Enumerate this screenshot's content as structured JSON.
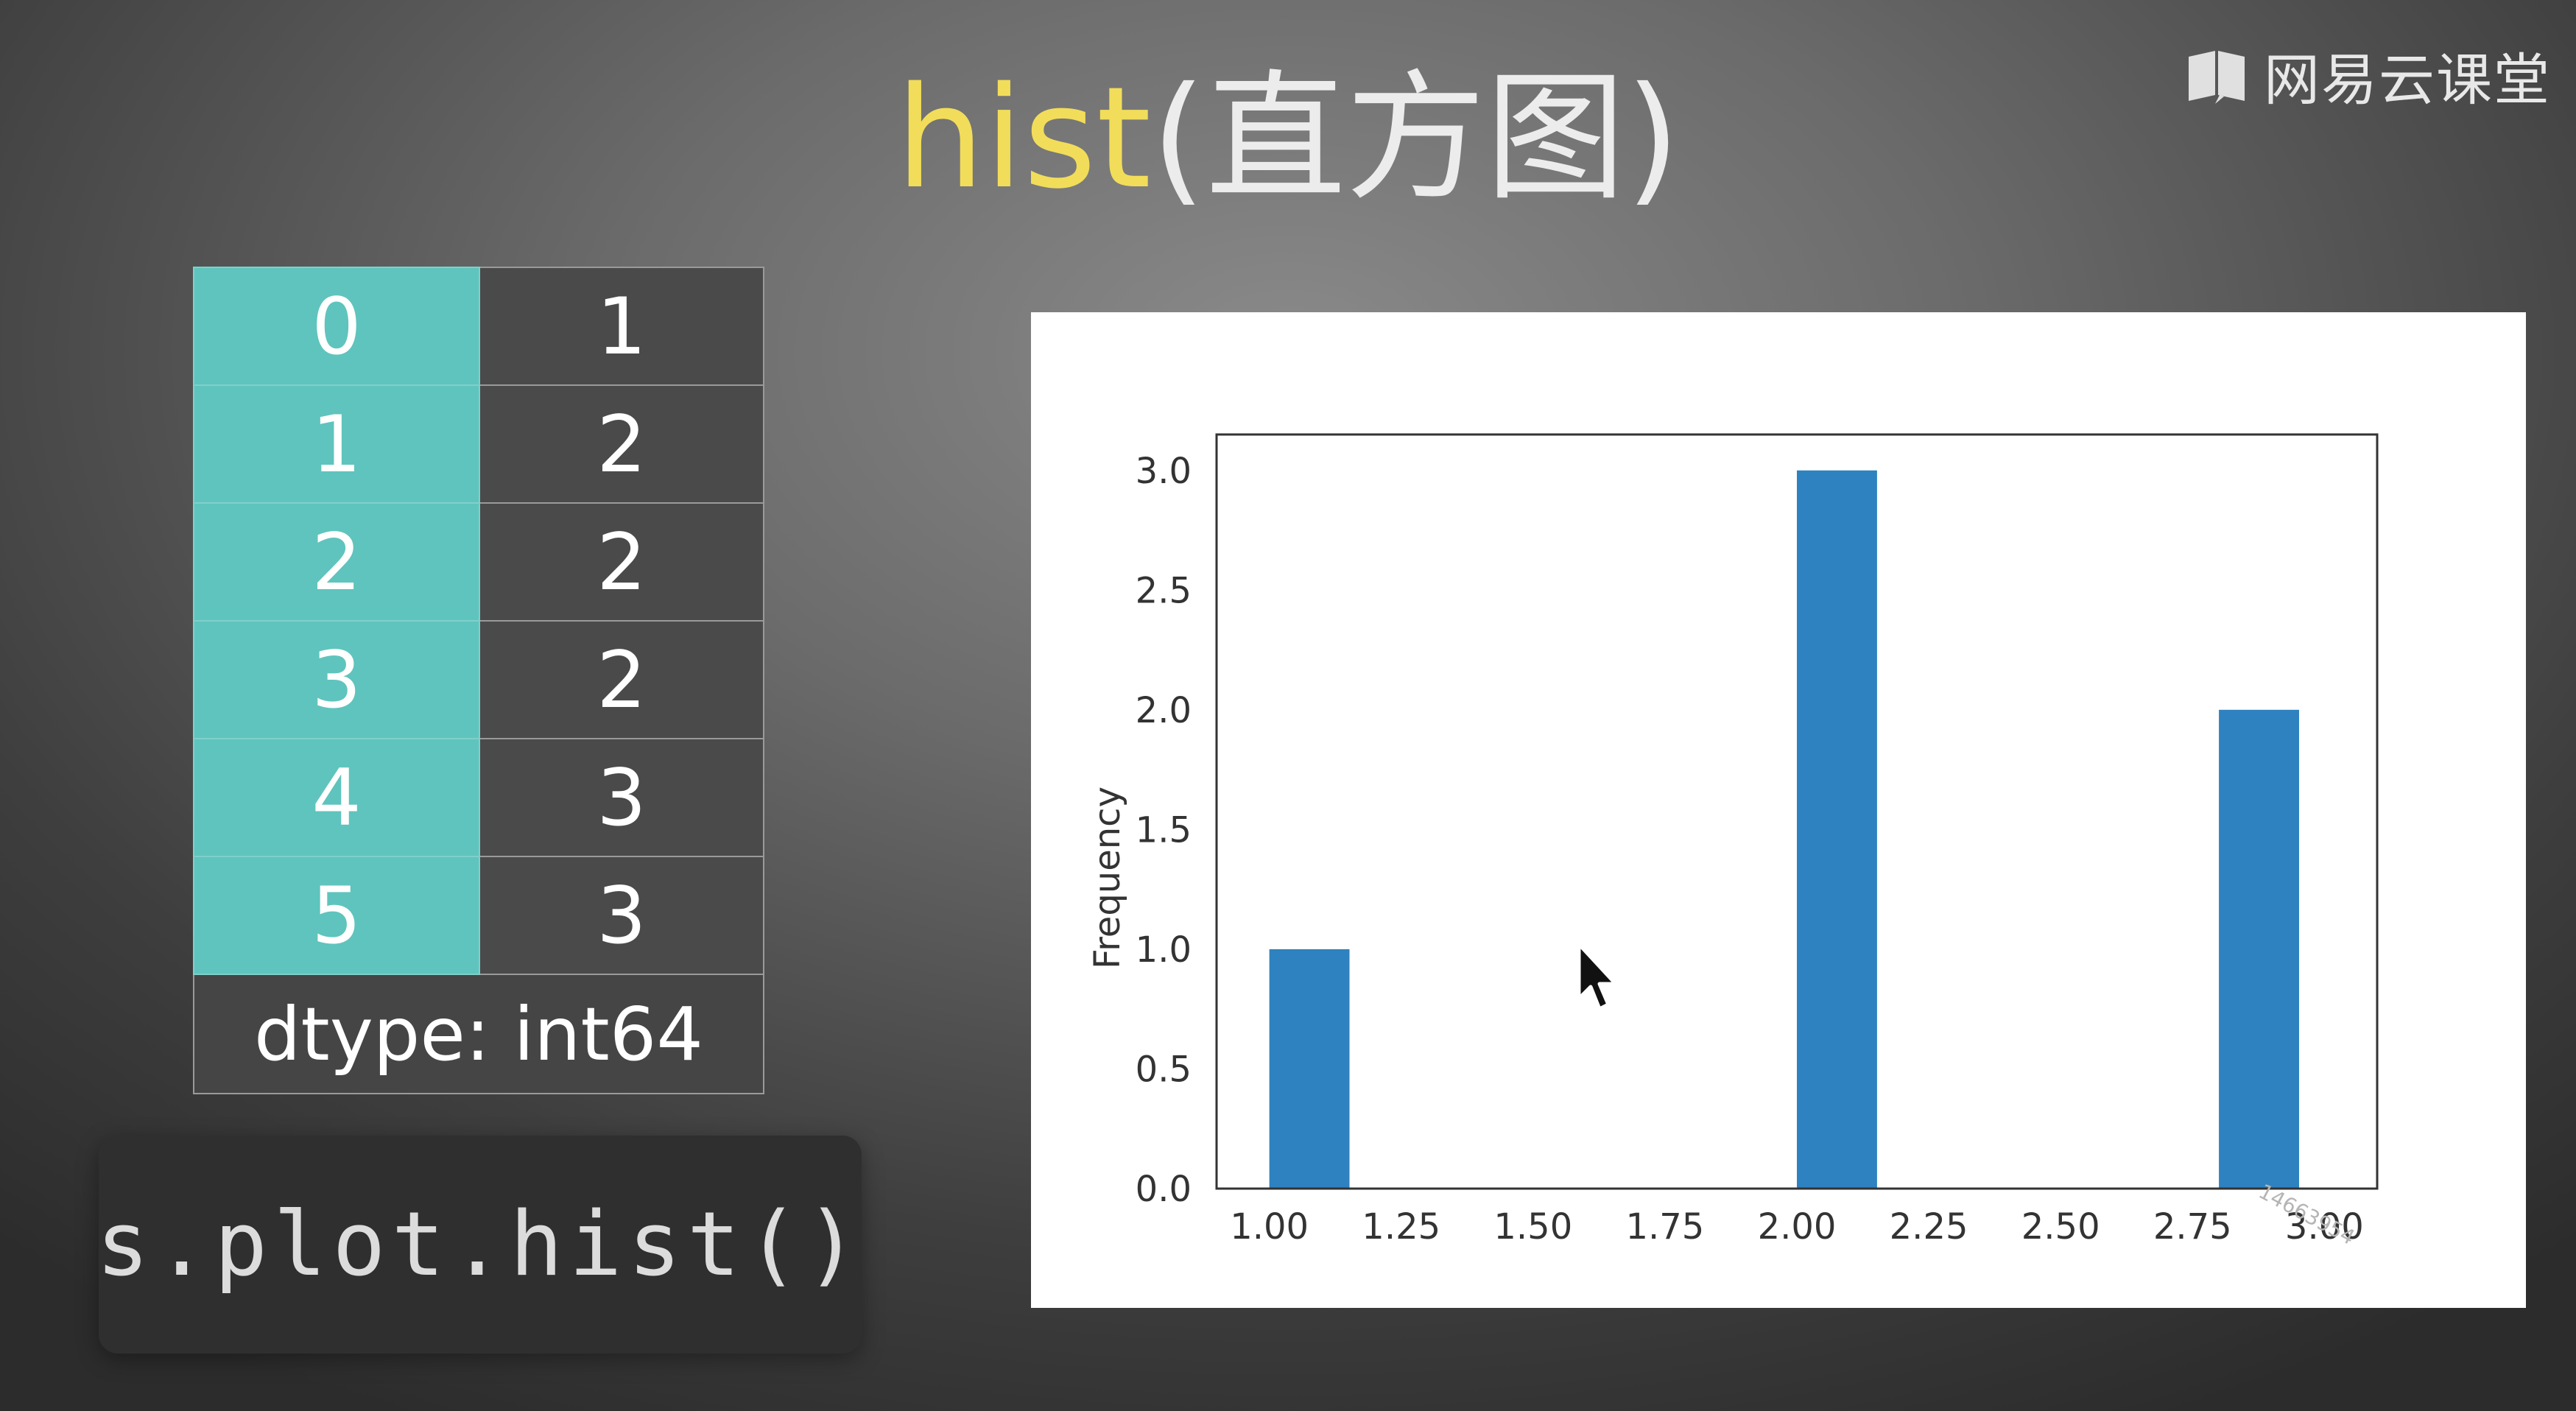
{
  "title": {
    "accent": "hist",
    "rest": "(直方图)"
  },
  "brand": {
    "name": "网易云课堂",
    "icon": "book-icon"
  },
  "series_table": {
    "rows": [
      {
        "index": "0",
        "value": "1"
      },
      {
        "index": "1",
        "value": "2"
      },
      {
        "index": "2",
        "value": "2"
      },
      {
        "index": "3",
        "value": "2"
      },
      {
        "index": "4",
        "value": "3"
      },
      {
        "index": "5",
        "value": "3"
      }
    ],
    "dtype": "dtype: int64"
  },
  "code": "s.plot.hist()",
  "watermark": "14663954",
  "colors": {
    "accent": "#f2dd5a",
    "index_cell": "#5fc4bd",
    "bar": "#2e82bf"
  },
  "chart_data": {
    "type": "bar",
    "subtype": "histogram",
    "bins": 10,
    "bin_edges": [
      1.0,
      1.2,
      1.4,
      1.6,
      1.8,
      2.0,
      2.2,
      2.4,
      2.6,
      2.8,
      3.0
    ],
    "values": [
      1,
      0,
      0,
      0,
      0,
      3,
      0,
      0,
      0,
      2
    ],
    "xlim": [
      0.9,
      3.1
    ],
    "ylim": [
      0,
      3.15
    ],
    "xticks": [
      1.0,
      1.25,
      1.5,
      1.75,
      2.0,
      2.25,
      2.5,
      2.75,
      3.0
    ],
    "xtick_labels": [
      "1.00",
      "1.25",
      "1.50",
      "1.75",
      "2.00",
      "2.25",
      "2.50",
      "2.75",
      "3.00"
    ],
    "yticks": [
      0,
      0.5,
      1.0,
      1.5,
      2.0,
      2.5,
      3.0
    ],
    "ytick_labels": [
      "0.0",
      "0.5",
      "1.0",
      "1.5",
      "2.0",
      "2.5",
      "3.0"
    ],
    "ylabel": "Frequency",
    "xlabel": "",
    "grid": false
  }
}
